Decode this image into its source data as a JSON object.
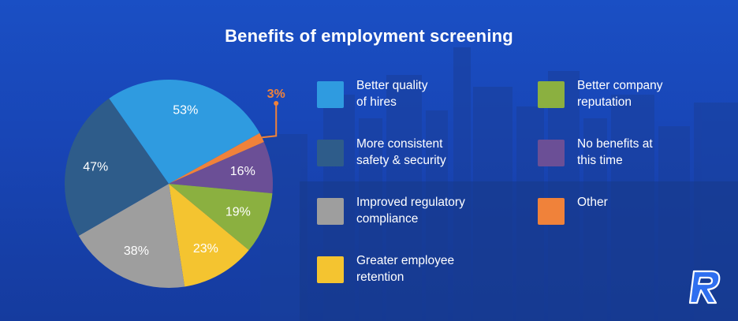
{
  "title": "Benefits of employment screening",
  "colors": {
    "background": "#1845b5",
    "quality": "#2f9be0",
    "consistent": "#2e5c8a",
    "compliance": "#9e9e9e",
    "retention": "#f4c430",
    "reputation": "#8bb040",
    "no_benefits": "#6b4f96",
    "other": "#f0823a"
  },
  "chart_data": {
    "type": "pie",
    "title": "Benefits of employment screening",
    "series": [
      {
        "name": "Better quality of hires",
        "value": 53,
        "label": "53%",
        "color": "#2f9be0"
      },
      {
        "name": "More consistent safety & security",
        "value": 47,
        "label": "47%",
        "color": "#2e5c8a"
      },
      {
        "name": "Improved regulatory compliance",
        "value": 38,
        "label": "38%",
        "color": "#9e9e9e"
      },
      {
        "name": "Greater employee retention",
        "value": 23,
        "label": "23%",
        "color": "#f4c430"
      },
      {
        "name": "Better company reputation",
        "value": 19,
        "label": "19%",
        "color": "#8bb040"
      },
      {
        "name": "No benefits at this time",
        "value": 16,
        "label": "16%",
        "color": "#6b4f96"
      },
      {
        "name": "Other",
        "value": 3,
        "label": "3%",
        "color": "#f0823a"
      }
    ],
    "legend_position": "right"
  },
  "legend": [
    {
      "text": "Better quality\nof hires",
      "color": "#2f9be0"
    },
    {
      "text": "More consistent\nsafety & security",
      "color": "#2e5c8a"
    },
    {
      "text": "Improved regulatory\ncompliance",
      "color": "#9e9e9e"
    },
    {
      "text": "Greater employee\nretention",
      "color": "#f4c430"
    },
    {
      "text": "Better company\nreputation",
      "color": "#8bb040"
    },
    {
      "text": "No benefits at\nthis time",
      "color": "#6b4f96"
    },
    {
      "text": "Other",
      "color": "#f0823a"
    }
  ],
  "logo_icon": "r-logo-icon"
}
